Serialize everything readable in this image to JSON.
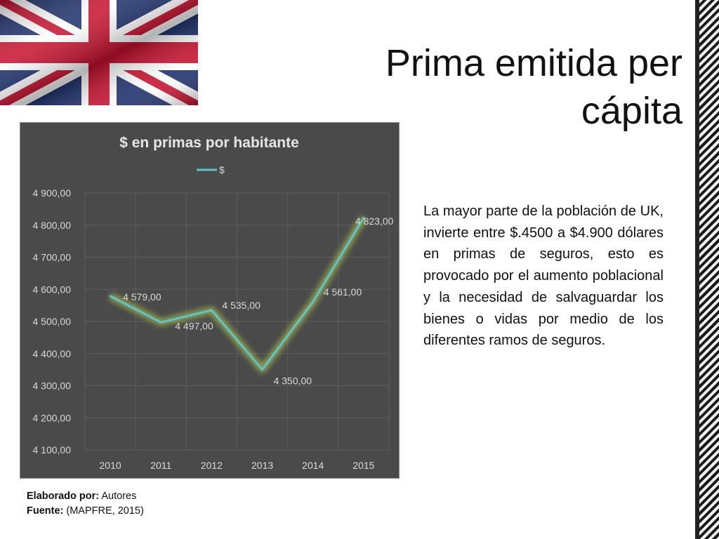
{
  "slide": {
    "title": "Prima emitida per cápita",
    "body": "La mayor parte de la población de UK, invierte entre $.4500 a $4.900 dólares en primas de seguros, esto es provocado por el aumento poblacional y la necesidad de salvaguardar los bienes o vidas por medio de los diferentes ramos de seguros.",
    "credit_label": "Elaborado por:",
    "credit_value": "Autores",
    "source_label": "Fuente:",
    "source_value": "(MAPFRE, 2015)",
    "flag_icon": "union-jack-flag"
  },
  "chart_data": {
    "type": "line",
    "title": "$ en primas por habitante",
    "categories": [
      "2010",
      "2011",
      "2012",
      "2013",
      "2014",
      "2015"
    ],
    "series": [
      {
        "name": "$",
        "values": [
          4579,
          4497,
          4535,
          4350,
          4561,
          4823
        ],
        "labels": [
          "4 579,00",
          "4 497,00",
          "4 535,00",
          "4 350,00",
          "4 561,00",
          "4 823,00"
        ],
        "color": "#5ec4cc",
        "glow": "#c8e650"
      }
    ],
    "ylim": [
      4100,
      4900
    ],
    "yticks": [
      4100,
      4200,
      4300,
      4400,
      4500,
      4600,
      4700,
      4800,
      4900
    ],
    "ytick_labels": [
      "4 100,00",
      "4 200,00",
      "4 300,00",
      "4 400,00",
      "4 500,00",
      "4 600,00",
      "4 700,00",
      "4 800,00",
      "4 900,00"
    ],
    "grid": true,
    "legend": "top",
    "background": "#4a4a4a",
    "text_color": "#d9d9d9"
  }
}
